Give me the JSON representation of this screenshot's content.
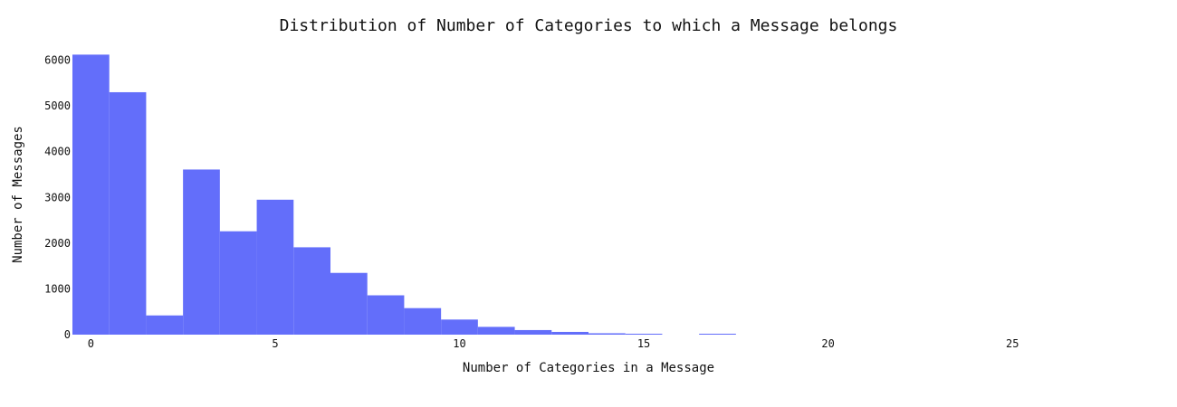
{
  "chart_data": {
    "type": "bar",
    "title": "Distribution of Number of Categories to which a Message belongs",
    "xlabel": "Number of Categories in a Message",
    "ylabel": "Number of Messages",
    "xlim": [
      -0.5,
      27.5
    ],
    "ylim": [
      0,
      6130
    ],
    "x_ticks": [
      0,
      5,
      10,
      15,
      20,
      25
    ],
    "y_ticks": [
      0,
      1000,
      2000,
      3000,
      4000,
      5000,
      6000
    ],
    "bar_color": "#636efa",
    "grid": false,
    "legend": "none",
    "series": [
      {
        "x": [
          0,
          1,
          2,
          3,
          4,
          5,
          6,
          7,
          8,
          9,
          10,
          11,
          12,
          13,
          14,
          15,
          16,
          17
        ],
        "values": [
          6122,
          5300,
          420,
          3610,
          2260,
          2950,
          1910,
          1350,
          860,
          580,
          330,
          170,
          100,
          60,
          30,
          20,
          0,
          20
        ]
      }
    ]
  }
}
